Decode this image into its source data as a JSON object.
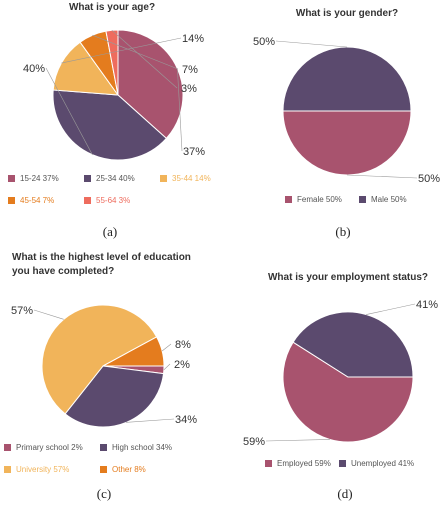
{
  "chart_data": [
    {
      "type": "pie",
      "title": "What is your age?",
      "caption": "(a)",
      "categories": [
        "15-24",
        "25-34",
        "35-44",
        "45-54",
        "55-64"
      ],
      "values": [
        37,
        40,
        14,
        7,
        3
      ],
      "value_labels": [
        "37%",
        "40%",
        "14%",
        "7%",
        "3%"
      ],
      "colors": [
        "#a8536e",
        "#5b4a6e",
        "#f1b45a",
        "#e47c1e",
        "#ee6c5e"
      ],
      "legend_placement": "bottom"
    },
    {
      "type": "pie",
      "title": "What is your gender?",
      "caption": "(b)",
      "categories": [
        "Female",
        "Male"
      ],
      "values": [
        50,
        50
      ],
      "value_labels": [
        "50%",
        "50%"
      ],
      "colors": [
        "#a8536e",
        "#5b4a6e"
      ],
      "legend_placement": "bottom"
    },
    {
      "type": "pie",
      "title": "What is the highest level of education you have completed?",
      "caption": "(c)",
      "categories": [
        "Primary school",
        "High school",
        "University",
        "Other"
      ],
      "values": [
        2,
        34,
        57,
        8
      ],
      "value_labels": [
        "2%",
        "34%",
        "57%",
        "8%"
      ],
      "colors": [
        "#a8536e",
        "#5b4a6e",
        "#f1b45a",
        "#e47c1e"
      ],
      "legend_placement": "bottom"
    },
    {
      "type": "pie",
      "title": "What is your employment status?",
      "caption": "(d)",
      "categories": [
        "Employed",
        "Unemployed"
      ],
      "values": [
        59,
        41
      ],
      "value_labels": [
        "59%",
        "41%"
      ],
      "colors": [
        "#a8536e",
        "#5b4a6e"
      ],
      "legend_placement": "bottom"
    }
  ]
}
